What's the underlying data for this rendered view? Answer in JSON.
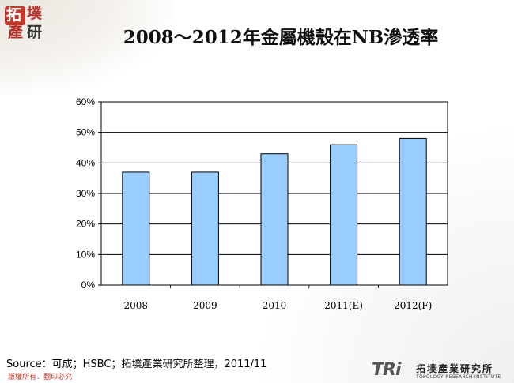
{
  "logo": {
    "chars": [
      "拓",
      "墣",
      "產",
      "研"
    ]
  },
  "title": "2008～2012年金屬機殼在NB滲透率",
  "chart_data": {
    "type": "bar",
    "categories": [
      "2008",
      "2009",
      "2010",
      "2011(E)",
      "2012(F)"
    ],
    "values": [
      37,
      37,
      43,
      46,
      48
    ],
    "yunit": "%",
    "ylim": [
      0,
      60
    ],
    "yticks": [
      0,
      10,
      20,
      30,
      40,
      50,
      60
    ],
    "grid": true,
    "legend": "none",
    "bar_color": "#99ccff",
    "title": "",
    "xlabel": "",
    "ylabel": ""
  },
  "source": "Source：可成；HSBC；拓墣產業研究所整理，2011/11",
  "copyright": "版權所有．翻印必究",
  "footer_logo": {
    "mark": "TRi",
    "name": "拓墣產業研究所",
    "sub": "TOPOLOGY RESEARCH INSTITUTE"
  }
}
